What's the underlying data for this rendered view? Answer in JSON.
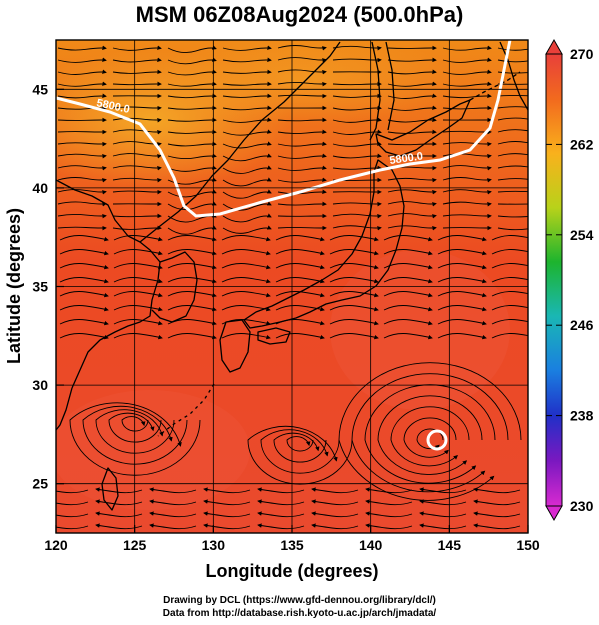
{
  "title": "MSM 06Z08Aug2024 (500.0hPa)",
  "x_axis": {
    "label": "Longitude (degrees)",
    "range": [
      120,
      150
    ],
    "ticks": [
      120,
      125,
      130,
      135,
      140,
      145,
      150
    ]
  },
  "y_axis": {
    "label": "Latitude  (degrees)",
    "range": [
      22.5,
      47.5
    ],
    "ticks": [
      25,
      30,
      35,
      40,
      45
    ]
  },
  "colorbar": {
    "range": [
      230,
      270
    ],
    "ticks": [
      230,
      238,
      246,
      254,
      262,
      270
    ]
  },
  "contour_labels": [
    "5800.0",
    "5800.0"
  ],
  "credits": [
    "Drawing by DCL (https://www.gfd-dennou.org/library/dcl/)",
    "Data from http://database.rish.kyoto-u.ac.jp/arch/jmadata/"
  ]
}
